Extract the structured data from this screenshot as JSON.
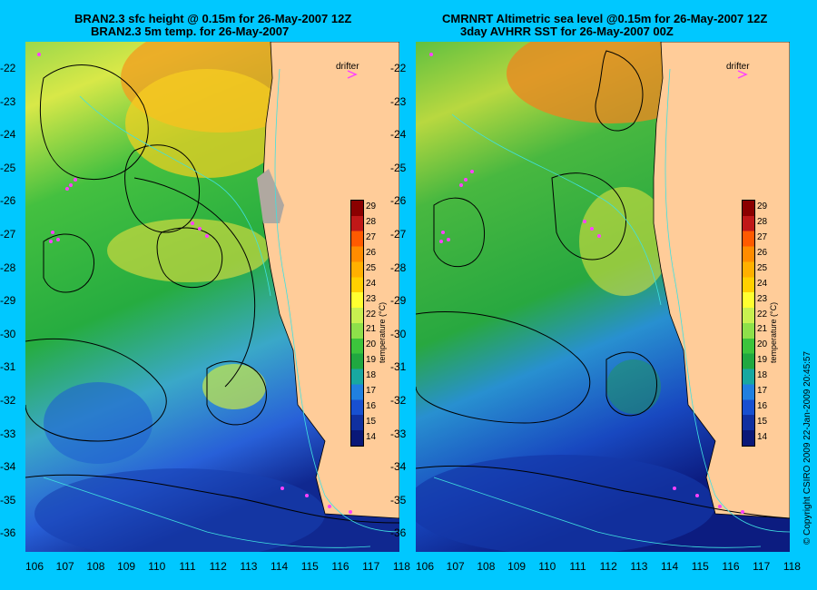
{
  "left_panel": {
    "title_line1": "BRAN2.3 sfc height @ 0.15m for 26-May-2007 12Z",
    "title_line2": "BRAN2.3 5m temp. for 26-May-2007",
    "drifter_label": "drifter"
  },
  "right_panel": {
    "title_line1": "CMRNRT Altimetric sea level  @0.15m  for 26-May-2007 12Z",
    "title_line2": "3day AVHRR SST for 26-May-2007 00Z",
    "drifter_label": "drifter"
  },
  "colorbar": {
    "label": "temperature (°C)",
    "ticks": [
      "29",
      "28",
      "27",
      "26",
      "25",
      "24",
      "23",
      "22",
      "21",
      "20",
      "19",
      "18",
      "17",
      "16",
      "15",
      "14"
    ],
    "colors": [
      "#8b0000",
      "#c01818",
      "#ff5a00",
      "#ff8c00",
      "#ffb000",
      "#ffd000",
      "#ffff30",
      "#c8f050",
      "#8ee04a",
      "#3cc43c",
      "#20a840",
      "#18a8a0",
      "#2080e0",
      "#1850d0",
      "#1030a0",
      "#0a1878"
    ]
  },
  "y_axis_labels": [
    "-22",
    "-23",
    "-24",
    "-25",
    "-26",
    "-27",
    "-28",
    "-29",
    "-30",
    "-31",
    "-32",
    "-33",
    "-34",
    "-35",
    "-36"
  ],
  "x_axis_labels": [
    "106",
    "107",
    "108",
    "109",
    "110",
    "111",
    "112",
    "113",
    "114",
    "115",
    "116",
    "117",
    "118"
  ],
  "copyright": "© Copyright CSIRO 2009   22-Jan-2009 20:45:57",
  "colors": {
    "background": "#00c8ff",
    "land": "#ffcc99"
  }
}
